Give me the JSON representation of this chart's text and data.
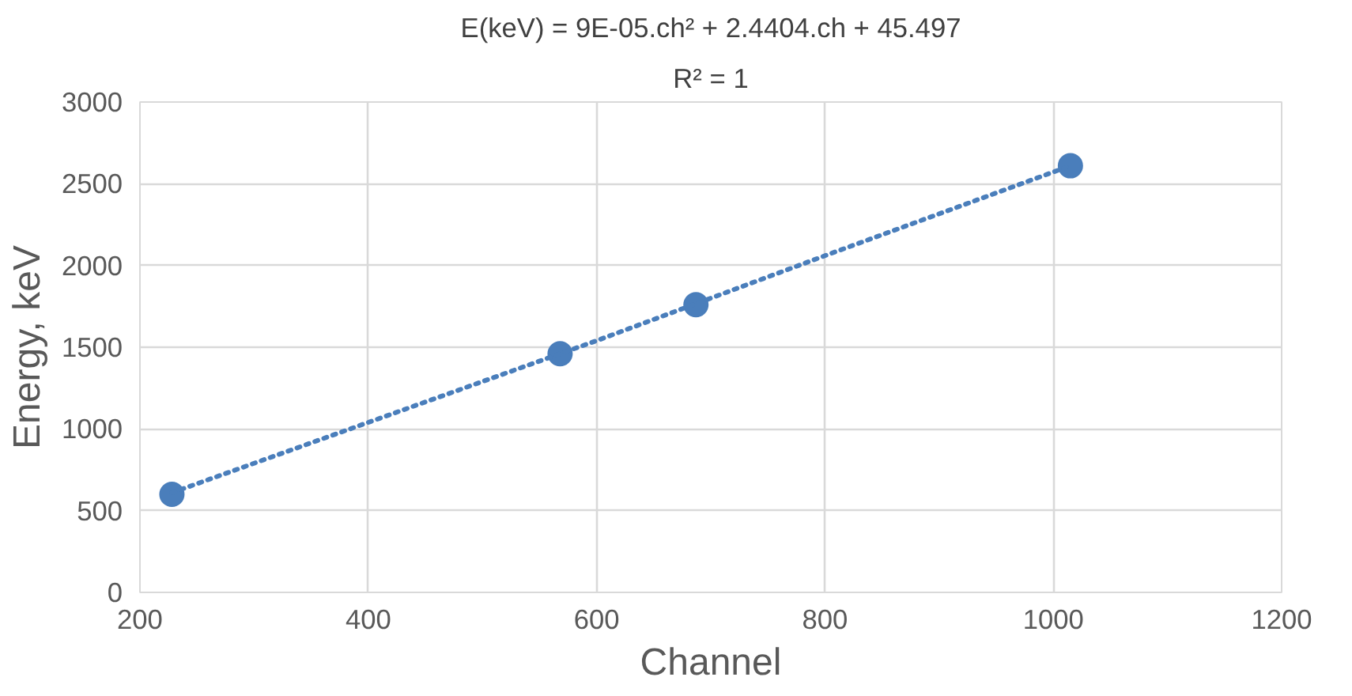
{
  "chart_data": {
    "type": "scatter",
    "xlabel": "Channel",
    "ylabel": "Energy, keV",
    "annotations": [
      "E(keV) = 9E-05.ch² + 2.4404.ch + 45.497",
      "R² = 1"
    ],
    "series": [
      {
        "color": "#4a7ebb",
        "marker": "circle",
        "x": [
          228,
          568,
          687,
          1015
        ],
        "values": [
          600,
          1460,
          1760,
          2610
        ]
      },
      {
        "type": "line",
        "color": "#4a7ebb",
        "line_style": "dotted",
        "marker": "none",
        "x": [
          228,
          400,
          600,
          800,
          1015
        ],
        "values": [
          610,
          1040,
          1540,
          2060,
          2610
        ]
      }
    ],
    "xlim": [
      200,
      1200
    ],
    "xticks": [
      200,
      400,
      600,
      800,
      1000,
      1200
    ],
    "ylim": [
      0,
      3000
    ],
    "yticks": [
      0,
      500,
      1000,
      1500,
      2000,
      2500,
      3000
    ],
    "grid": true
  }
}
